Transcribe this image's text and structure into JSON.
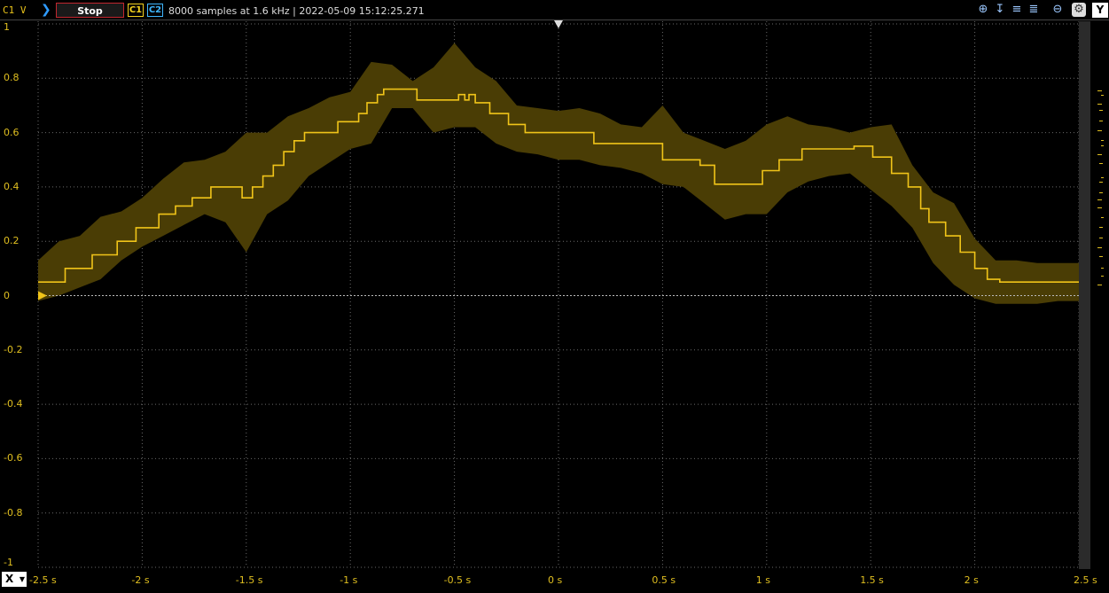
{
  "toolbar": {
    "channel_unit": "C1 V",
    "run_icon": "play-chevron-icon",
    "stop_label": "Stop",
    "c1_label": "C1",
    "c2_label": "C2",
    "status": "8000 samples at 1.6 kHz | 2022-05-09 15:12:25.271",
    "tools": [
      "zoom-in-icon",
      "cursor-x-icon",
      "cursor-y-icon",
      "measure-icon",
      "zoom-out-icon",
      "settings-icon"
    ],
    "y_label": "Y"
  },
  "x_axis_button": {
    "label": "X"
  },
  "colors": {
    "trace": "#f0c419",
    "envelope": "#4a3d05",
    "grid": "#6a6a6a",
    "axis_text": "#e0bf20"
  },
  "chart_data": {
    "type": "line",
    "title": "",
    "xlabel": "",
    "ylabel": "",
    "xlim": [
      -2.5,
      2.5
    ],
    "ylim": [
      -1,
      1
    ],
    "grid": true,
    "y_ticks": [
      "1",
      "0.8",
      "0.6",
      "0.4",
      "0.2",
      "0",
      "-0.2",
      "-0.4",
      "-0.6",
      "-0.8",
      "-1"
    ],
    "x_ticks": [
      "-2.5 s",
      "-2 s",
      "-1.5 s",
      "-1 s",
      "-0.5 s",
      "0 s",
      "0.5 s",
      "1 s",
      "1.5 s",
      "2 s",
      "2.5 s"
    ],
    "series": [
      {
        "style": "step",
        "x": [
          -2.5,
          -2.37,
          -2.24,
          -2.12,
          -2.03,
          -1.92,
          -1.84,
          -1.76,
          -1.67,
          -1.52,
          -1.47,
          -1.42,
          -1.37,
          -1.32,
          -1.27,
          -1.22,
          -1.16,
          -1.06,
          -0.96,
          -0.92,
          -0.87,
          -0.84,
          -0.78,
          -0.68,
          -0.48,
          -0.45,
          -0.43,
          -0.4,
          -0.33,
          -0.24,
          -0.16,
          -0.15,
          0.17,
          0.5,
          0.68,
          0.75,
          0.98,
          1.06,
          1.17,
          1.42,
          1.51,
          1.6,
          1.68,
          1.74,
          1.78,
          1.86,
          1.93,
          2.0,
          2.06,
          2.12,
          2.5
        ],
        "y": [
          0.05,
          0.1,
          0.15,
          0.2,
          0.25,
          0.3,
          0.33,
          0.36,
          0.4,
          0.36,
          0.4,
          0.44,
          0.48,
          0.53,
          0.57,
          0.6,
          0.6,
          0.64,
          0.67,
          0.71,
          0.74,
          0.76,
          0.76,
          0.72,
          0.74,
          0.72,
          0.74,
          0.71,
          0.67,
          0.63,
          0.6,
          0.6,
          0.56,
          0.5,
          0.48,
          0.41,
          0.46,
          0.5,
          0.54,
          0.55,
          0.51,
          0.45,
          0.4,
          0.32,
          0.27,
          0.22,
          0.16,
          0.1,
          0.06,
          0.05,
          0.05
        ]
      }
    ],
    "envelope": {
      "x": [
        -2.5,
        -2.4,
        -2.3,
        -2.2,
        -2.1,
        -2.0,
        -1.9,
        -1.8,
        -1.7,
        -1.6,
        -1.5,
        -1.4,
        -1.3,
        -1.2,
        -1.1,
        -1.0,
        -0.9,
        -0.8,
        -0.7,
        -0.6,
        -0.5,
        -0.4,
        -0.3,
        -0.2,
        -0.1,
        0.0,
        0.1,
        0.2,
        0.3,
        0.4,
        0.5,
        0.6,
        0.7,
        0.8,
        0.9,
        1.0,
        1.1,
        1.2,
        1.3,
        1.4,
        1.5,
        1.6,
        1.7,
        1.8,
        1.9,
        2.0,
        2.1,
        2.2,
        2.3,
        2.4,
        2.5
      ],
      "upper": [
        0.13,
        0.2,
        0.22,
        0.29,
        0.31,
        0.36,
        0.43,
        0.49,
        0.5,
        0.53,
        0.6,
        0.6,
        0.66,
        0.69,
        0.73,
        0.75,
        0.86,
        0.85,
        0.79,
        0.84,
        0.93,
        0.84,
        0.79,
        0.7,
        0.69,
        0.68,
        0.69,
        0.67,
        0.63,
        0.62,
        0.7,
        0.6,
        0.57,
        0.54,
        0.57,
        0.63,
        0.66,
        0.63,
        0.62,
        0.6,
        0.62,
        0.63,
        0.48,
        0.38,
        0.34,
        0.21,
        0.13,
        0.13,
        0.12,
        0.12,
        0.12
      ],
      "lower": [
        -0.02,
        0.0,
        0.03,
        0.06,
        0.13,
        0.18,
        0.22,
        0.26,
        0.3,
        0.27,
        0.16,
        0.3,
        0.35,
        0.44,
        0.49,
        0.54,
        0.56,
        0.69,
        0.69,
        0.6,
        0.62,
        0.62,
        0.56,
        0.53,
        0.52,
        0.5,
        0.5,
        0.48,
        0.47,
        0.45,
        0.41,
        0.4,
        0.34,
        0.28,
        0.3,
        0.3,
        0.38,
        0.42,
        0.44,
        0.45,
        0.39,
        0.33,
        0.25,
        0.12,
        0.04,
        -0.01,
        -0.03,
        -0.03,
        -0.03,
        -0.02,
        -0.02
      ]
    }
  }
}
